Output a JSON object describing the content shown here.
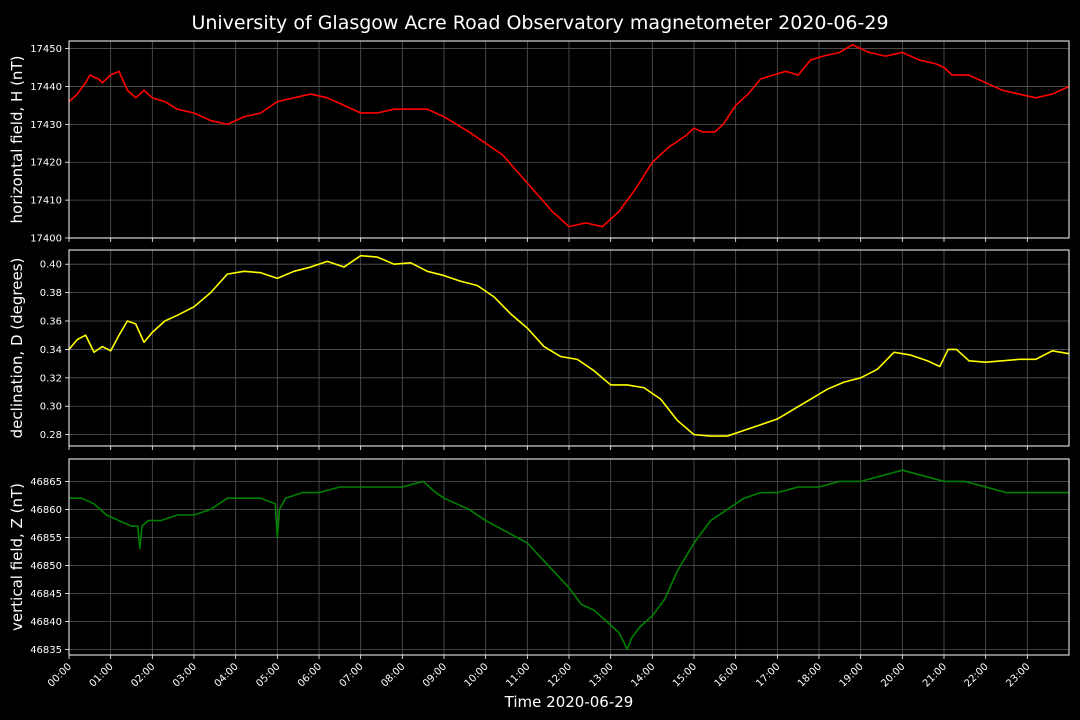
{
  "figure": {
    "title": "University of Glasgow Acre Road Observatory magnetometer 2020-06-29",
    "background": "#000000",
    "grid_color": "#555555"
  },
  "chart_data": [
    {
      "type": "line",
      "ylabel": "horizontal field, H (nT)",
      "xlim": [
        0,
        24
      ],
      "ylim": [
        17400,
        17452
      ],
      "yticks": [
        "17400",
        "17410",
        "17420",
        "17430",
        "17440",
        "17450"
      ],
      "grid": true,
      "series": [
        {
          "color": "#ff0000",
          "x": [
            0,
            0.2,
            0.4,
            0.5,
            0.7,
            0.8,
            1.0,
            1.2,
            1.4,
            1.6,
            1.8,
            2.0,
            2.3,
            2.6,
            3.0,
            3.4,
            3.8,
            4.2,
            4.6,
            5.0,
            5.4,
            5.8,
            6.2,
            6.6,
            7.0,
            7.4,
            7.8,
            8.2,
            8.6,
            9.0,
            9.3,
            9.6,
            10.0,
            10.4,
            10.8,
            11.2,
            11.6,
            12.0,
            12.4,
            12.8,
            13.2,
            13.6,
            14.0,
            14.4,
            14.8,
            15.0,
            15.2,
            15.5,
            15.7,
            16.0,
            16.3,
            16.6,
            16.9,
            17.2,
            17.5,
            17.8,
            18.1,
            18.5,
            18.8,
            19.2,
            19.6,
            20.0,
            20.4,
            20.8,
            21.0,
            21.2,
            21.6,
            22.0,
            22.4,
            22.8,
            23.2,
            23.6,
            24.0
          ],
          "y": [
            17436,
            17438,
            17441,
            17443,
            17442,
            17441,
            17443,
            17444,
            17439,
            17437,
            17439,
            17437,
            17436,
            17434,
            17433,
            17431,
            17430,
            17432,
            17433,
            17436,
            17437,
            17438,
            17437,
            17435,
            17433,
            17433,
            17434,
            17434,
            17434,
            17432,
            17430,
            17428,
            17425,
            17422,
            17417,
            17412,
            17407,
            17403,
            17404,
            17403,
            17407,
            17413,
            17420,
            17424,
            17427,
            17429,
            17428,
            17428,
            17430,
            17435,
            17438,
            17442,
            17443,
            17444,
            17443,
            17447,
            17448,
            17449,
            17451,
            17449,
            17448,
            17449,
            17447,
            17446,
            17445,
            17443,
            17443,
            17441,
            17439,
            17438,
            17437,
            17438,
            17440
          ]
        }
      ]
    },
    {
      "type": "line",
      "ylabel": "declination, D (degrees)",
      "xlim": [
        0,
        24
      ],
      "ylim": [
        0.272,
        0.41
      ],
      "yticks": [
        "0.28",
        "0.30",
        "0.32",
        "0.34",
        "0.36",
        "0.38",
        "0.40"
      ],
      "grid": true,
      "series": [
        {
          "color": "#ffff00",
          "x": [
            0,
            0.2,
            0.4,
            0.6,
            0.8,
            1.0,
            1.2,
            1.4,
            1.6,
            1.8,
            2.0,
            2.3,
            2.6,
            3.0,
            3.4,
            3.8,
            4.2,
            4.6,
            5.0,
            5.4,
            5.8,
            6.2,
            6.6,
            7.0,
            7.4,
            7.8,
            8.2,
            8.6,
            9.0,
            9.4,
            9.8,
            10.2,
            10.6,
            11.0,
            11.4,
            11.8,
            12.2,
            12.6,
            13.0,
            13.4,
            13.8,
            14.2,
            14.6,
            15.0,
            15.4,
            15.8,
            16.2,
            16.6,
            17.0,
            17.4,
            17.8,
            18.2,
            18.6,
            19.0,
            19.4,
            19.8,
            20.2,
            20.6,
            20.9,
            21.1,
            21.3,
            21.6,
            22.0,
            22.4,
            22.8,
            23.2,
            23.6,
            24.0
          ],
          "y": [
            0.34,
            0.347,
            0.35,
            0.338,
            0.342,
            0.339,
            0.35,
            0.36,
            0.358,
            0.345,
            0.352,
            0.36,
            0.364,
            0.37,
            0.38,
            0.393,
            0.395,
            0.394,
            0.39,
            0.395,
            0.398,
            0.402,
            0.398,
            0.406,
            0.405,
            0.4,
            0.401,
            0.395,
            0.392,
            0.388,
            0.385,
            0.377,
            0.365,
            0.355,
            0.342,
            0.335,
            0.333,
            0.325,
            0.315,
            0.315,
            0.313,
            0.305,
            0.29,
            0.28,
            0.279,
            0.279,
            0.283,
            0.287,
            0.291,
            0.298,
            0.305,
            0.312,
            0.317,
            0.32,
            0.326,
            0.338,
            0.336,
            0.332,
            0.328,
            0.34,
            0.34,
            0.332,
            0.331,
            0.332,
            0.333,
            0.333,
            0.339,
            0.337
          ]
        }
      ]
    },
    {
      "type": "line",
      "ylabel": "vertical field, Z (nT)",
      "xlabel": "Time 2020-06-29",
      "xlim": [
        0,
        24
      ],
      "ylim": [
        46834,
        46869
      ],
      "yticks": [
        "46835",
        "46840",
        "46845",
        "46850",
        "46855",
        "46860",
        "46865"
      ],
      "xticks": [
        "00:00",
        "01:00",
        "02:00",
        "03:00",
        "04:00",
        "05:00",
        "06:00",
        "07:00",
        "08:00",
        "09:00",
        "10:00",
        "11:00",
        "12:00",
        "13:00",
        "14:00",
        "15:00",
        "16:00",
        "17:00",
        "18:00",
        "19:00",
        "20:00",
        "21:00",
        "22:00",
        "23:00"
      ],
      "grid": true,
      "series": [
        {
          "color": "#008000",
          "x": [
            0,
            0.3,
            0.6,
            0.9,
            1.2,
            1.5,
            1.65,
            1.7,
            1.75,
            1.9,
            2.2,
            2.6,
            3.0,
            3.4,
            3.8,
            4.2,
            4.6,
            4.95,
            5.0,
            5.05,
            5.2,
            5.6,
            6.0,
            6.5,
            7.0,
            7.5,
            8.0,
            8.5,
            8.8,
            9.0,
            9.3,
            9.6,
            10.0,
            10.5,
            11.0,
            11.5,
            12.0,
            12.3,
            12.6,
            12.9,
            13.2,
            13.4,
            13.5,
            13.7,
            14.0,
            14.3,
            14.6,
            15.0,
            15.4,
            15.8,
            16.2,
            16.6,
            17.0,
            17.5,
            18.0,
            18.5,
            19.0,
            19.5,
            20.0,
            20.5,
            21.0,
            21.5,
            22.0,
            22.5,
            23.0,
            23.5,
            24.0
          ],
          "y": [
            46862,
            46862,
            46861,
            46859,
            46858,
            46857,
            46857,
            46853,
            46857,
            46858,
            46858,
            46859,
            46859,
            46860,
            46862,
            46862,
            46862,
            46861,
            46855,
            46860,
            46862,
            46863,
            46863,
            46864,
            46864,
            46864,
            46864,
            46865,
            46863,
            46862,
            46861,
            46860,
            46858,
            46856,
            46854,
            46850,
            46846,
            46843,
            46842,
            46840,
            46838,
            46835,
            46837,
            46839,
            46841,
            46844,
            46849,
            46854,
            46858,
            46860,
            46862,
            46863,
            46863,
            46864,
            46864,
            46865,
            46865,
            46866,
            46867,
            46866,
            46865,
            46865,
            46864,
            46863,
            46863,
            46863,
            46863
          ]
        }
      ]
    }
  ]
}
